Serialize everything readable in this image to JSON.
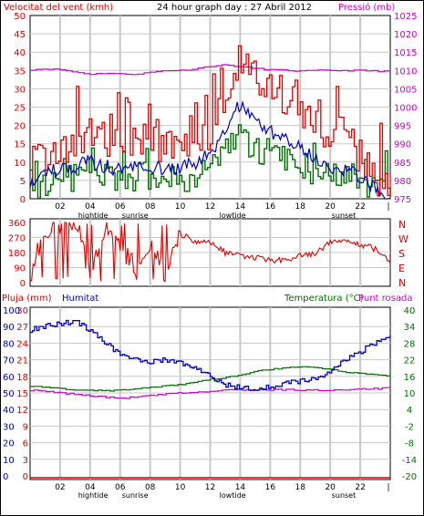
{
  "header": {
    "left_label": "Velocitat del vent (kmh)",
    "center_label": "24 hour graph day : 27 Abril 2012",
    "right_label": "Pressió (mb)"
  },
  "colors": {
    "wind": "#e00000",
    "gust": "#0000c0",
    "avg": "#007000",
    "pressure": "#cc00cc",
    "humidity": "#0000c0",
    "temperature": "#007000",
    "dewpoint": "#cc00cc",
    "rain": "#e00000",
    "grid": "#c8c8c8"
  },
  "x_ticks": [
    "02",
    "04",
    "06",
    "08",
    "10",
    "12",
    "14",
    "16",
    "18",
    "20",
    "22"
  ],
  "events": [
    {
      "label": "hightide",
      "hour": 4.2
    },
    {
      "label": "sunrise",
      "hour": 7.0
    },
    {
      "label": "lowtide",
      "hour": 13.5
    },
    {
      "label": "sunset",
      "hour": 20.9
    }
  ],
  "panel2": {
    "y_ticks": [
      "360",
      "270",
      "180",
      "90",
      "0"
    ],
    "compass": [
      "N",
      "W",
      "S",
      "E",
      "N"
    ]
  },
  "panel3": {
    "left_label": "Pluja (mm)",
    "hum_label": "Humitat",
    "temp_label": "Temperatura (°C)",
    "dew_label": "Punt rosada",
    "rain_ticks": [
      "30",
      "27",
      "24",
      "21",
      "18",
      "15",
      "12",
      "9",
      "6",
      "3",
      "0"
    ],
    "hum_ticks": [
      "100",
      "90",
      "80",
      "70",
      "60",
      "50",
      "40",
      "30",
      "20",
      "10",
      "0"
    ],
    "temp_ticks": [
      "40",
      "34",
      "28",
      "22",
      "16",
      "10",
      "4",
      "-2",
      "-8",
      "-14",
      "-20"
    ]
  },
  "chart_data": [
    {
      "type": "line",
      "title": "24 hour graph day : 27 Abril 2012",
      "ylabel": "Velocitat del vent (kmh)",
      "y2label": "Pressió (mb)",
      "ylim": [
        0,
        50
      ],
      "y2lim": [
        975,
        1025
      ],
      "y_ticks": [
        0,
        5,
        10,
        15,
        20,
        25,
        30,
        35,
        40,
        45,
        50
      ],
      "y2_ticks": [
        975,
        980,
        985,
        990,
        995,
        1000,
        1005,
        1010,
        1015,
        1020,
        1025
      ],
      "x": [
        0,
        1,
        2,
        3,
        4,
        5,
        6,
        7,
        8,
        9,
        10,
        11,
        12,
        13,
        14,
        15,
        16,
        17,
        18,
        19,
        20,
        21,
        22,
        23,
        24
      ],
      "series": [
        {
          "name": "gust",
          "values": [
            9,
            12,
            14,
            15,
            18,
            16,
            14,
            15,
            16,
            14,
            15,
            16,
            18,
            30,
            38,
            33,
            30,
            28,
            25,
            19,
            16,
            14,
            11,
            6,
            2
          ]
        },
        {
          "name": "wind",
          "values": [
            5,
            7,
            8,
            9,
            10,
            9,
            8,
            9,
            9,
            8,
            8,
            10,
            12,
            18,
            26,
            22,
            18,
            17,
            14,
            11,
            9,
            8,
            6,
            3,
            1
          ]
        },
        {
          "name": "avg",
          "values": [
            3,
            4,
            5,
            6,
            7,
            6,
            5,
            6,
            6,
            5,
            5,
            6,
            9,
            13,
            17,
            14,
            12,
            11,
            9,
            7,
            6,
            5,
            4,
            2,
            1
          ]
        },
        {
          "name": "pressure",
          "values": [
            1010.2,
            1010.5,
            1010.2,
            1009.5,
            1009.0,
            1009.3,
            1009.0,
            1009.0,
            1009.5,
            1010.0,
            1010.0,
            1010.5,
            1011.2,
            1011.5,
            1011.0,
            1010.5,
            1010.2,
            1010.0,
            1009.8,
            1010.0,
            1010.0,
            1010.0,
            1010.0,
            1009.8,
            1009.8
          ]
        }
      ]
    },
    {
      "type": "line",
      "ylim": [
        0,
        360
      ],
      "y_ticks": [
        0,
        90,
        180,
        270,
        360
      ],
      "x": [
        0,
        1,
        2,
        3,
        4,
        5,
        6,
        7,
        8,
        9,
        10,
        11,
        12,
        13,
        14,
        15,
        16,
        17,
        18,
        19,
        20,
        21,
        22,
        23,
        24
      ],
      "series": [
        {
          "name": "direction",
          "values": [
            40,
            320,
            350,
            330,
            60,
            340,
            200,
            100,
            230,
            40,
            290,
            250,
            240,
            180,
            160,
            150,
            130,
            140,
            160,
            170,
            250,
            240,
            230,
            200,
            120
          ]
        }
      ]
    },
    {
      "type": "line",
      "title": "",
      "ylabel": "Pluja (mm)",
      "x": [
        0,
        1,
        2,
        3,
        4,
        5,
        6,
        7,
        8,
        9,
        10,
        11,
        12,
        13,
        14,
        15,
        16,
        17,
        18,
        19,
        20,
        21,
        22,
        23,
        24
      ],
      "ylim_rain": [
        0,
        30
      ],
      "ylim_humidity": [
        0,
        100
      ],
      "ylim_temperature": [
        -20,
        40
      ],
      "series": [
        {
          "name": "Humitat",
          "values": [
            88,
            90,
            92,
            93,
            88,
            80,
            73,
            70,
            69,
            70,
            68,
            65,
            60,
            55,
            53,
            52,
            54,
            56,
            57,
            58,
            63,
            70,
            75,
            80,
            85
          ]
        },
        {
          "name": "Temperatura",
          "values": [
            12.5,
            12.0,
            11.5,
            11.0,
            11.0,
            10.8,
            11.0,
            11.5,
            12.0,
            12.5,
            13.0,
            14.0,
            15.0,
            15.5,
            16.5,
            18.0,
            18.5,
            19.0,
            19.5,
            19.2,
            18.5,
            17.5,
            17.0,
            16.5,
            16.0
          ]
        },
        {
          "name": "Punt rosada",
          "values": [
            11.0,
            10.5,
            10.0,
            9.5,
            9.0,
            8.5,
            8.0,
            8.5,
            9.0,
            9.5,
            10.0,
            10.2,
            10.5,
            11.0,
            11.2,
            11.0,
            11.0,
            11.2,
            11.0,
            11.0,
            11.0,
            11.2,
            11.5,
            11.5,
            11.8
          ]
        },
        {
          "name": "Pluja",
          "values": [
            0,
            0,
            0,
            0,
            0,
            0,
            0,
            0,
            0,
            0,
            0,
            0,
            0,
            0,
            0,
            0,
            0,
            0,
            0,
            0,
            0,
            0,
            0,
            0,
            0
          ]
        }
      ]
    }
  ]
}
